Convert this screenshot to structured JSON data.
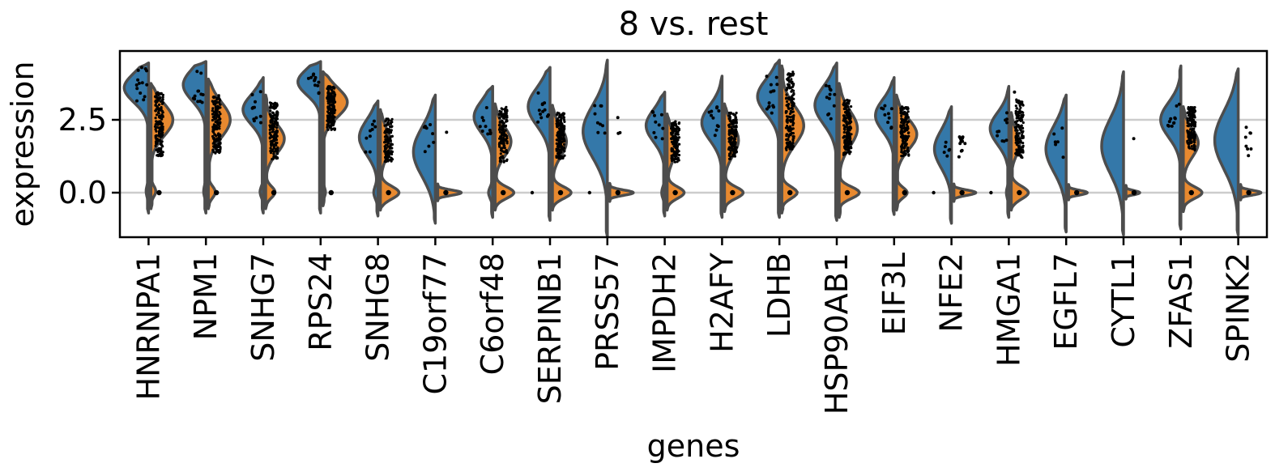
{
  "chart_data": {
    "type": "violin",
    "title": "8 vs. rest",
    "xlabel": "genes",
    "ylabel": "expression",
    "groups": [
      "8",
      "rest"
    ],
    "colors": {
      "group_8_fill": "#3478a9",
      "rest_fill": "#e8892f",
      "outline": "#4d4d4d",
      "grid": "#cccccc",
      "frame": "#000000",
      "points": "#000000",
      "background": "#ffffff"
    },
    "ylim": [
      -1.53,
      4.86
    ],
    "grid_on": true,
    "grid_values": [
      2.5,
      0.0
    ],
    "yticks": [
      {
        "value": 2.5,
        "label": "2.5"
      },
      {
        "value": 0.0,
        "label": "0.0"
      }
    ],
    "genes": [
      {
        "name": "HNRNPA1",
        "blue": {
          "bumps": [
            [
              3.6,
              0.5,
              1
            ],
            [
              0.05,
              0.2,
              0.1
            ]
          ],
          "lo": -0.7,
          "hi": 4.45,
          "hw": 30,
          "dots": [
            14,
            3.1,
            4.3
          ]
        },
        "orange": {
          "mode": "dense",
          "bumps": [
            [
              2.5,
              0.55,
              1
            ],
            [
              0.05,
              0.18,
              0.22
            ]
          ],
          "lo": -0.55,
          "hi": 3.75,
          "hw": 27,
          "dots": [
            170,
            1.25,
            3.45
          ]
        },
        "zero_dot": true,
        "stray": false
      },
      {
        "name": "NPM1",
        "blue": {
          "bumps": [
            [
              3.7,
              0.55,
              1
            ],
            [
              0.05,
              0.2,
              0.1
            ]
          ],
          "lo": -0.7,
          "hi": 4.5,
          "hw": 28,
          "dots": [
            12,
            3.0,
            4.25
          ]
        },
        "orange": {
          "mode": "dense",
          "bumps": [
            [
              2.5,
              0.6,
              1
            ],
            [
              0.02,
              0.2,
              0.32
            ]
          ],
          "lo": -0.55,
          "hi": 3.9,
          "hw": 27,
          "dots": [
            170,
            1.35,
            3.35
          ]
        },
        "zero_dot": true,
        "stray": false
      },
      {
        "name": "SNHG7",
        "blue": {
          "bumps": [
            [
              2.85,
              0.5,
              1
            ],
            [
              0.03,
              0.18,
              0.16
            ]
          ],
          "lo": -0.7,
          "hi": 3.95,
          "hw": 25,
          "dots": [
            11,
            2.4,
            3.6
          ]
        },
        "orange": {
          "mode": "dense",
          "bumps": [
            [
              1.85,
              0.5,
              1
            ],
            [
              0.02,
              0.2,
              0.5
            ]
          ],
          "lo": -0.55,
          "hi": 3.35,
          "hw": 23,
          "dots": [
            160,
            1.15,
            3.1
          ]
        },
        "zero_dot": true,
        "stray": false
      },
      {
        "name": "RPS24",
        "blue": {
          "bumps": [
            [
              3.8,
              0.45,
              1
            ]
          ],
          "lo": -0.7,
          "hi": 4.5,
          "hw": 28,
          "dots": [
            12,
            3.3,
            4.3
          ]
        },
        "orange": {
          "mode": "dense",
          "bumps": [
            [
              3.1,
              0.5,
              1
            ],
            [
              0.02,
              0.16,
              0.1
            ]
          ],
          "lo": -0.45,
          "hi": 4.15,
          "hw": 30,
          "dots": [
            170,
            2.15,
            3.65
          ]
        },
        "zero_dot": true,
        "stray": false
      },
      {
        "name": "SNHG8",
        "blue": {
          "bumps": [
            [
              1.9,
              0.6,
              1
            ],
            [
              0.0,
              0.22,
              0.22
            ]
          ],
          "lo": -0.8,
          "hi": 3.15,
          "hw": 23,
          "dots": [
            9,
            1.35,
            2.6
          ]
        },
        "orange": {
          "mode": "dense",
          "bumps": [
            [
              1.7,
              0.5,
              0.55
            ],
            [
              0.0,
              0.22,
              1
            ]
          ],
          "lo": -0.6,
          "hi": 2.85,
          "hw": 23,
          "dots": [
            120,
            1.05,
            2.55
          ]
        },
        "zero_dot": true,
        "stray": false
      },
      {
        "name": "C19orf77",
        "blue": {
          "bumps": [
            [
              1.4,
              0.85,
              1
            ]
          ],
          "lo": -1.05,
          "hi": 3.35,
          "hw": 27,
          "dots": [
            8,
            1.3,
            2.8
          ]
        },
        "orange": {
          "mode": "sparse",
          "bumps": [
            [
              0,
              0.09,
              1
            ]
          ],
          "lo": -0.28,
          "hi": 0.3,
          "hw": 29,
          "dots": [
            1,
            2.05,
            2.15
          ]
        },
        "zero_dot": true,
        "stray": false
      },
      {
        "name": "C6orf48",
        "blue": {
          "bumps": [
            [
              2.6,
              0.55,
              1
            ],
            [
              0.0,
              0.2,
              0.22
            ]
          ],
          "lo": -0.85,
          "hi": 3.65,
          "hw": 23,
          "dots": [
            10,
            2.0,
            3.2
          ]
        },
        "orange": {
          "mode": "dense",
          "bumps": [
            [
              1.75,
              0.5,
              0.85
            ],
            [
              0.0,
              0.2,
              1
            ]
          ],
          "lo": -0.6,
          "hi": 3.05,
          "hw": 23,
          "dots": [
            150,
            1.05,
            2.95
          ]
        },
        "zero_dot": true,
        "stray": false
      },
      {
        "name": "SERPINB1",
        "blue": {
          "bumps": [
            [
              2.95,
              0.65,
              1
            ]
          ],
          "lo": -0.95,
          "hi": 4.3,
          "hw": 27,
          "dots": [
            12,
            2.3,
            3.5
          ]
        },
        "orange": {
          "mode": "dense",
          "bumps": [
            [
              1.75,
              0.5,
              0.75
            ],
            [
              0.0,
              0.2,
              1
            ]
          ],
          "lo": -0.6,
          "hi": 3.0,
          "hw": 23,
          "dots": [
            160,
            1.15,
            2.75
          ]
        },
        "zero_dot": true,
        "stray": true
      },
      {
        "name": "PRSS57",
        "blue": {
          "bumps": [
            [
              2.1,
              0.9,
              1
            ]
          ],
          "lo": -1.5,
          "hi": 4.55,
          "hw": 30,
          "dots": [
            9,
            1.9,
            3.1
          ]
        },
        "orange": {
          "mode": "sparse",
          "bumps": [
            [
              0,
              0.09,
              1
            ]
          ],
          "lo": -0.3,
          "hi": 0.32,
          "hw": 29,
          "dots": [
            3,
            1.3,
            2.6
          ]
        },
        "zero_dot": true,
        "stray": true
      },
      {
        "name": "IMPDH2",
        "blue": {
          "bumps": [
            [
              2.3,
              0.55,
              1
            ],
            [
              0.0,
              0.2,
              0.16
            ]
          ],
          "lo": -0.8,
          "hi": 3.45,
          "hw": 23,
          "dots": [
            10,
            1.85,
            2.95
          ]
        },
        "orange": {
          "mode": "dense",
          "bumps": [
            [
              1.6,
              0.48,
              0.6
            ],
            [
              0.0,
              0.2,
              1
            ]
          ],
          "lo": -0.6,
          "hi": 2.7,
          "hw": 21,
          "dots": [
            140,
            1.05,
            2.45
          ]
        },
        "zero_dot": true,
        "stray": false
      },
      {
        "name": "H2AFY",
        "blue": {
          "bumps": [
            [
              2.4,
              0.6,
              1
            ]
          ],
          "lo": -0.85,
          "hi": 4.0,
          "hw": 25,
          "dots": [
            11,
            1.9,
            3.0
          ]
        },
        "orange": {
          "mode": "dense",
          "bumps": [
            [
              1.8,
              0.52,
              0.75
            ],
            [
              0.0,
              0.2,
              1
            ]
          ],
          "lo": -0.65,
          "hi": 3.05,
          "hw": 23,
          "dots": [
            160,
            1.15,
            2.75
          ]
        },
        "zero_dot": true,
        "stray": false
      },
      {
        "name": "LDHB",
        "blue": {
          "bumps": [
            [
              3.3,
              0.6,
              1
            ]
          ],
          "lo": -0.85,
          "hi": 4.55,
          "hw": 27,
          "dots": [
            14,
            2.7,
            4.1
          ]
        },
        "orange": {
          "mode": "dense",
          "bumps": [
            [
              2.3,
              0.65,
              1
            ],
            [
              0.0,
              0.2,
              0.7
            ]
          ],
          "lo": -0.7,
          "hi": 4.35,
          "hw": 27,
          "dots": [
            180,
            1.45,
            4.15
          ]
        },
        "zero_dot": true,
        "stray": false
      },
      {
        "name": "HSP90AB1",
        "blue": {
          "bumps": [
            [
              3.0,
              0.65,
              1
            ]
          ],
          "lo": -0.95,
          "hi": 4.45,
          "hw": 27,
          "dots": [
            12,
            2.4,
            3.7
          ]
        },
        "orange": {
          "mode": "dense",
          "bumps": [
            [
              2.2,
              0.6,
              0.9
            ],
            [
              0.0,
              0.2,
              1
            ]
          ],
          "lo": -0.85,
          "hi": 3.75,
          "hw": 25,
          "dots": [
            170,
            1.3,
            3.2
          ]
        },
        "zero_dot": true,
        "stray": false
      },
      {
        "name": "EIF3L",
        "blue": {
          "bumps": [
            [
              2.65,
              0.55,
              1
            ]
          ],
          "lo": -0.75,
          "hi": 3.95,
          "hw": 23,
          "dots": [
            10,
            2.15,
            3.1
          ]
        },
        "orange": {
          "mode": "dense",
          "bumps": [
            [
              2.0,
              0.52,
              0.95
            ],
            [
              0.0,
              0.18,
              0.5
            ]
          ],
          "lo": -0.6,
          "hi": 3.35,
          "hw": 25,
          "dots": [
            160,
            1.25,
            2.95
          ]
        },
        "zero_dot": true,
        "stray": false
      },
      {
        "name": "NFE2",
        "blue": {
          "bumps": [
            [
              1.5,
              0.65,
              1
            ]
          ],
          "lo": -1.05,
          "hi": 2.95,
          "hw": 21,
          "dots": [
            6,
            1.25,
            1.75
          ]
        },
        "orange": {
          "mode": "sparse",
          "bumps": [
            [
              0,
              0.09,
              1
            ]
          ],
          "lo": -0.3,
          "hi": 0.3,
          "hw": 27,
          "dots": [
            13,
            1.15,
            1.95
          ]
        },
        "zero_dot": true,
        "stray": true
      },
      {
        "name": "HMGA1",
        "blue": {
          "bumps": [
            [
              2.2,
              0.55,
              1
            ],
            [
              0.0,
              0.2,
              0.13
            ]
          ],
          "lo": -0.85,
          "hi": 3.65,
          "hw": 23,
          "dots": [
            10,
            1.75,
            2.75
          ]
        },
        "orange": {
          "mode": "dense",
          "bumps": [
            [
              1.7,
              0.42,
              0.5
            ],
            [
              0.0,
              0.22,
              1
            ]
          ],
          "lo": -0.6,
          "hi": 2.75,
          "hw": 21,
          "dots": [
            150,
            1.2,
            3.2
          ]
        },
        "zero_dot": true,
        "stray": true,
        "extra": [
          [
            3.45,
            7
          ]
        ]
      },
      {
        "name": "EGFL7",
        "blue": {
          "bumps": [
            [
              1.5,
              0.8,
              1
            ]
          ],
          "lo": -1.35,
          "hi": 3.35,
          "hw": 25,
          "dots": [
            6,
            1.2,
            2.25
          ]
        },
        "orange": {
          "mode": "sparse",
          "bumps": [
            [
              0,
              0.08,
              1
            ]
          ],
          "lo": -0.25,
          "hi": 0.28,
          "hw": 23,
          "dots": [
            0,
            0,
            0
          ]
        },
        "zero_dot": true,
        "stray": false
      },
      {
        "name": "CYTL1",
        "blue": {
          "bumps": [
            [
              1.6,
              0.95,
              1
            ]
          ],
          "lo": -1.45,
          "hi": 4.15,
          "hw": 27,
          "dots": [
            0,
            0,
            0
          ]
        },
        "orange": {
          "mode": "sparse",
          "bumps": [
            [
              0,
              0.07,
              1
            ]
          ],
          "lo": -0.22,
          "hi": 0.25,
          "hw": 17,
          "dots": [
            1,
            1.85,
            1.92
          ]
        },
        "zero_dot": true,
        "stray": false
      },
      {
        "name": "ZFAS1",
        "blue": {
          "bumps": [
            [
              2.5,
              0.6,
              1
            ]
          ],
          "lo": -1.25,
          "hi": 4.35,
          "hw": 25,
          "dots": [
            11,
            2.05,
            3.05
          ]
        },
        "orange": {
          "mode": "dense",
          "bumps": [
            [
              1.7,
              0.48,
              0.8
            ],
            [
              0.0,
              0.2,
              1
            ]
          ],
          "lo": -0.65,
          "hi": 2.95,
          "hw": 23,
          "dots": [
            150,
            1.45,
            2.95
          ]
        },
        "zero_dot": true,
        "stray": false
      },
      {
        "name": "SPINK2",
        "blue": {
          "bumps": [
            [
              1.8,
              1.0,
              1
            ]
          ],
          "lo": -1.45,
          "hi": 4.25,
          "hw": 29,
          "dots": [
            0,
            0,
            0
          ]
        },
        "orange": {
          "mode": "sparse",
          "bumps": [
            [
              0,
              0.08,
              1
            ]
          ],
          "lo": -0.25,
          "hi": 0.28,
          "hw": 25,
          "dots": [
            8,
            1.1,
            2.3
          ]
        },
        "zero_dot": true,
        "stray": false
      }
    ]
  }
}
